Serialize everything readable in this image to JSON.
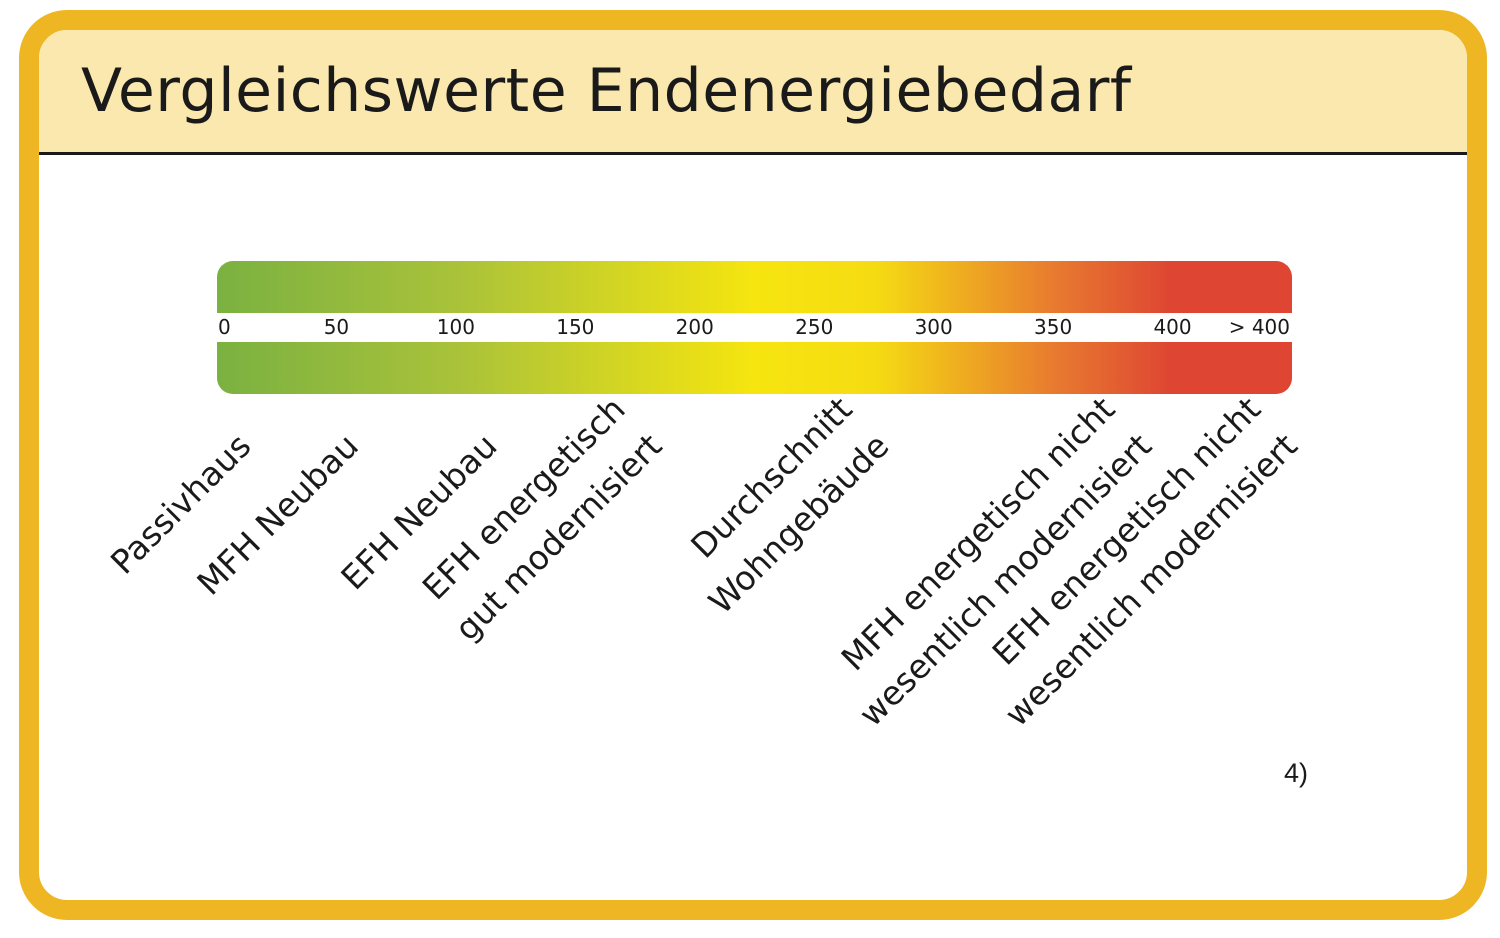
{
  "title": "Vergleichswerte Endenergiebedarf",
  "footnote": "4)",
  "colors": {
    "frame": "#EFB623",
    "header_bg": "#FAE8AE",
    "scale_green": "#7BB141",
    "scale_yellow": "#F6E50F",
    "scale_orange": "#ED9C2A",
    "scale_red": "#DE4533",
    "text": "#1a1a1a"
  },
  "chart_data": {
    "type": "bar",
    "subtype": "color-scale",
    "title": "Vergleichswerte Endenergiebedarf",
    "range": [
      0,
      450
    ],
    "ticks": [
      {
        "value": 0,
        "label": "0"
      },
      {
        "value": 50,
        "label": "50"
      },
      {
        "value": 100,
        "label": "100"
      },
      {
        "value": 150,
        "label": "150"
      },
      {
        "value": 200,
        "label": "200"
      },
      {
        "value": 250,
        "label": "250"
      },
      {
        "value": 300,
        "label": "300"
      },
      {
        "value": 350,
        "label": "350"
      },
      {
        "value": 400,
        "label": "400"
      },
      {
        "value": 450,
        "label": "> 400"
      }
    ],
    "gradient": [
      {
        "value": 0,
        "color": "#7BB141"
      },
      {
        "value": 100,
        "color": "#A9C23A"
      },
      {
        "value": 225,
        "color": "#F6E50F"
      },
      {
        "value": 275,
        "color": "#F5DC12"
      },
      {
        "value": 350,
        "color": "#E87B2F"
      },
      {
        "value": 400,
        "color": "#DE4533"
      },
      {
        "value": 450,
        "color": "#DE4533"
      }
    ],
    "categories": [
      {
        "lines": [
          "Passivhaus"
        ],
        "value": 15
      },
      {
        "lines": [
          "MFH Neubau"
        ],
        "value": 60
      },
      {
        "lines": [
          "EFH Neubau"
        ],
        "value": 118
      },
      {
        "lines": [
          "EFH energetisch",
          "gut modernisiert"
        ],
        "value": 187
      },
      {
        "lines": [
          "Durchschnitt",
          "Wohngebäude"
        ],
        "value": 282
      },
      {
        "lines": [
          "MFH energetisch nicht",
          "wesentlich modernisiert"
        ],
        "value": 392
      },
      {
        "lines": [
          "EFH energetisch nicht",
          "wesentlich modernisiert"
        ],
        "value": 453
      }
    ]
  }
}
